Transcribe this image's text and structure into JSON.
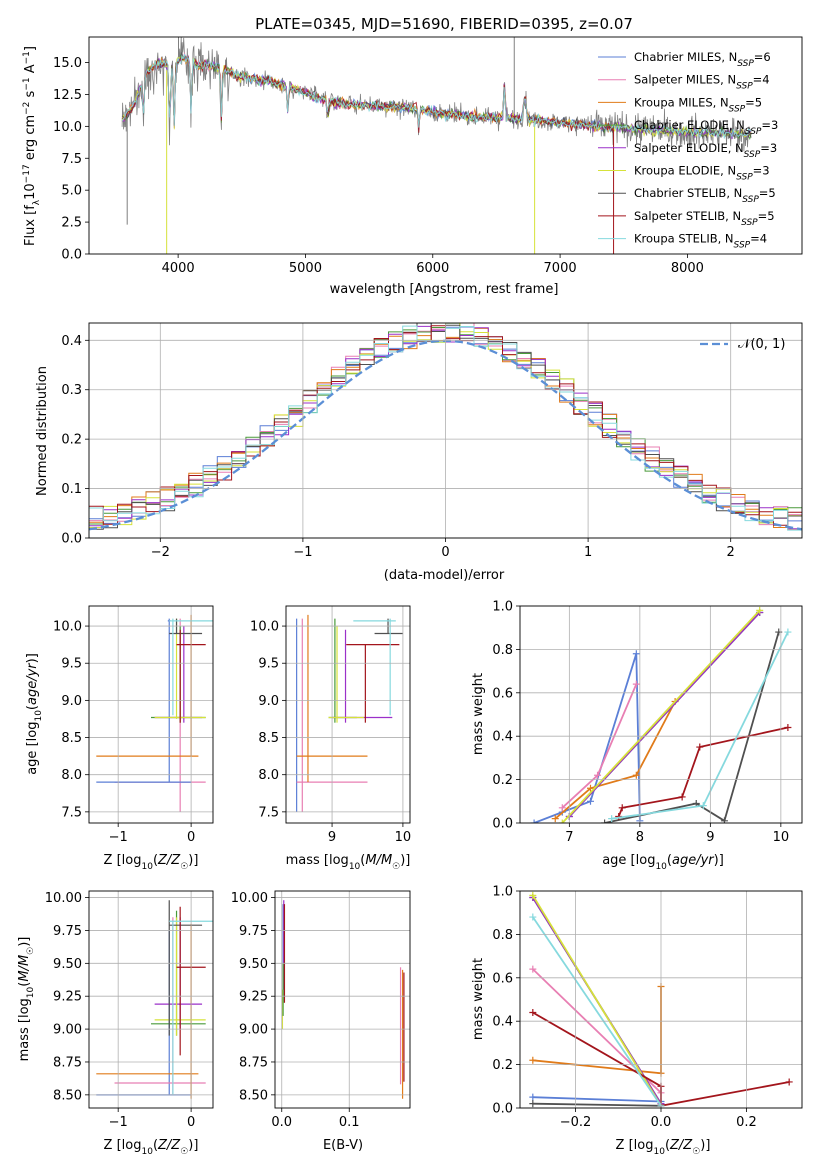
{
  "figure": {
    "title": "PLATE=0345, MJD=51690, FIBERID=0395, z=0.07"
  },
  "colors": {
    "Chabrier MILES": "#5b7fd6",
    "Salpeter MILES": "#e87fb3",
    "Kroupa MILES": "#e07b1a",
    "Chabrier ELODIE": "#4a9a3a",
    "Salpeter ELODIE": "#9b30c9",
    "Kroupa ELODIE": "#d6e23a",
    "Chabrier STELIB": "#505050",
    "Salpeter STELIB": "#a3151c",
    "Kroupa STELIB": "#86d9de",
    "data": "#808080",
    "normal": "#5b8fd6"
  },
  "chart_data": [
    {
      "panel": "spectrum",
      "type": "line",
      "title": "PLATE=0345, MJD=51690, FIBERID=0395, z=0.07",
      "xlabel": "wavelength [Angstrom, rest frame]",
      "ylabel": "Flux [f_λ 10^-17 erg cm^-2 s^-1 A^-1]",
      "xlim": [
        3300,
        8900
      ],
      "ylim": [
        0,
        17
      ],
      "xticks": [
        4000,
        5000,
        6000,
        7000,
        8000
      ],
      "yticks": [
        0.0,
        2.5,
        5.0,
        7.5,
        10.0,
        12.5,
        15.0
      ],
      "legend_position": "right",
      "series": [
        {
          "name": "Chabrier MILES",
          "nssp": "6"
        },
        {
          "name": "Salpeter MILES",
          "nssp": "4"
        },
        {
          "name": "Kroupa MILES",
          "nssp": "5"
        },
        {
          "name": "Chabrier ELODIE",
          "nssp": "3"
        },
        {
          "name": "Salpeter ELODIE",
          "nssp": "3"
        },
        {
          "name": "Kroupa ELODIE",
          "nssp": "3"
        },
        {
          "name": "Chabrier STELIB",
          "nssp": "5"
        },
        {
          "name": "Salpeter STELIB",
          "nssp": "5"
        },
        {
          "name": "Kroupa STELIB",
          "nssp": "4"
        }
      ],
      "continuum_x": [
        3560,
        3650,
        3750,
        3850,
        3950,
        4050,
        4150,
        4300,
        4500,
        4700,
        4900,
        5100,
        5300,
        5500,
        5800,
        6100,
        6400,
        6700,
        7000,
        7300,
        7600,
        7900,
        8200,
        8500
      ],
      "continuum_y": [
        10.5,
        11.6,
        14.2,
        15.0,
        14.8,
        15.4,
        14.8,
        14.7,
        13.9,
        13.6,
        13.0,
        12.2,
        11.8,
        11.6,
        11.5,
        11.0,
        10.7,
        10.6,
        10.3,
        10.0,
        9.8,
        9.6,
        9.5,
        9.4
      ]
    },
    {
      "panel": "residuals",
      "type": "histogram",
      "xlabel": "(data-model)/error",
      "ylabel": "Normed distribution",
      "xlim": [
        -2.5,
        2.5
      ],
      "ylim": [
        0,
        0.435
      ],
      "xticks": [
        -2,
        -1,
        0,
        1,
        2
      ],
      "yticks": [
        0.0,
        0.1,
        0.2,
        0.3,
        0.4
      ],
      "legend": "𝒩(0, 1)",
      "legend_position": "top-right",
      "bins": 50
    },
    {
      "panel": "age-vs-Z",
      "type": "scatter",
      "xlabel": "Z [log10(Z/Z☉)]",
      "ylabel": "age [log10(age/yr)]",
      "xlim": [
        -1.4,
        0.3
      ],
      "ylim": [
        7.35,
        10.27
      ],
      "xticks": [
        -1,
        0
      ],
      "yticks": [
        7.5,
        8.0,
        8.5,
        9.0,
        9.5,
        10.0
      ]
    },
    {
      "panel": "age-vs-mass",
      "type": "scatter",
      "xlabel": "mass [log10(M/M☉)]",
      "ylabel": "",
      "xlim": [
        8.35,
        10.1
      ],
      "ylim": [
        7.35,
        10.27
      ],
      "xticks": [
        9,
        10
      ],
      "yticks": [
        7.5,
        8.0,
        8.5,
        9.0,
        9.5,
        10.0
      ]
    },
    {
      "panel": "weight-vs-age",
      "type": "line",
      "xlabel": "age [log10(age/yr)]",
      "ylabel": "mass weight",
      "xlim": [
        6.3,
        10.3
      ],
      "ylim": [
        0,
        1.0
      ],
      "xticks": [
        7,
        8,
        9,
        10
      ],
      "yticks": [
        0.0,
        0.2,
        0.4,
        0.6,
        0.8,
        1.0
      ],
      "series": [
        {
          "name": "Chabrier MILES",
          "x": [
            6.5,
            6.9,
            7.3,
            7.95,
            8.0
          ],
          "y": [
            0.0,
            0.05,
            0.1,
            0.78,
            0.01
          ]
        },
        {
          "name": "Salpeter MILES",
          "x": [
            6.9,
            7.4,
            7.95
          ],
          "y": [
            0.07,
            0.22,
            0.64
          ]
        },
        {
          "name": "Kroupa MILES",
          "x": [
            6.8,
            7.3,
            7.95,
            8.5
          ],
          "y": [
            0.02,
            0.16,
            0.22,
            0.56
          ]
        },
        {
          "name": "Chabrier ELODIE",
          "x": [
            7.0,
            9.7
          ],
          "y": [
            0.03,
            0.97
          ]
        },
        {
          "name": "Salpeter ELODIE",
          "x": [
            7.0,
            9.7
          ],
          "y": [
            0.03,
            0.97
          ]
        },
        {
          "name": "Kroupa ELODIE",
          "x": [
            6.9,
            9.7
          ],
          "y": [
            0.0,
            0.98
          ]
        },
        {
          "name": "Chabrier STELIB",
          "x": [
            7.5,
            8.8,
            9.2,
            9.97
          ],
          "y": [
            0.0,
            0.09,
            0.01,
            0.88
          ]
        },
        {
          "name": "Salpeter STELIB",
          "x": [
            7.7,
            7.75,
            8.6,
            8.85,
            10.1
          ],
          "y": [
            0.03,
            0.07,
            0.12,
            0.35,
            0.44
          ]
        },
        {
          "name": "Kroupa STELIB",
          "x": [
            7.6,
            8.9,
            10.1
          ],
          "y": [
            0.02,
            0.08,
            0.88
          ]
        }
      ]
    },
    {
      "panel": "mass-vs-Z",
      "type": "scatter",
      "xlabel": "Z [log10(Z/Z☉)]",
      "ylabel": "mass [log10(M/M☉)]",
      "xlim": [
        -1.4,
        0.3
      ],
      "ylim": [
        8.4,
        10.05
      ],
      "xticks": [
        -1,
        0
      ],
      "yticks": [
        8.5,
        8.75,
        9.0,
        9.25,
        9.5,
        9.75,
        10.0
      ]
    },
    {
      "panel": "mass-vs-EBV",
      "type": "scatter",
      "xlabel": "E(B-V)",
      "ylabel": "",
      "xlim": [
        -0.01,
        0.19
      ],
      "ylim": [
        8.4,
        10.05
      ],
      "xticks": [
        0.0,
        0.1
      ],
      "yticks": [
        8.5,
        8.75,
        9.0,
        9.25,
        9.5,
        9.75,
        10.0
      ]
    },
    {
      "panel": "weight-vs-Z",
      "type": "line",
      "xlabel": "Z [log10(Z/Z☉)]",
      "ylabel": "mass weight",
      "xlim": [
        -0.33,
        0.33
      ],
      "ylim": [
        0,
        1.0
      ],
      "xticks": [
        -0.2,
        0.0,
        0.2
      ],
      "yticks": [
        0.0,
        0.2,
        0.4,
        0.6,
        0.8,
        1.0
      ],
      "series": [
        {
          "name": "Chabrier MILES",
          "x": [
            -0.3,
            0.0
          ],
          "y": [
            0.05,
            0.03
          ]
        },
        {
          "name": "Salpeter MILES",
          "x": [
            -0.3,
            0.0
          ],
          "y": [
            0.64,
            0.07
          ]
        },
        {
          "name": "Kroupa MILES",
          "x": [
            -0.3,
            0.0,
            0.0
          ],
          "y": [
            0.22,
            0.16,
            0.56
          ]
        },
        {
          "name": "Chabrier ELODIE",
          "x": [
            -0.3,
            0.0
          ],
          "y": [
            0.97,
            0.02
          ]
        },
        {
          "name": "Salpeter ELODIE",
          "x": [
            -0.3,
            0.0
          ],
          "y": [
            0.97,
            0.02
          ]
        },
        {
          "name": "Kroupa ELODIE",
          "x": [
            -0.3,
            0.0
          ],
          "y": [
            0.98,
            0.01
          ]
        },
        {
          "name": "Chabrier STELIB",
          "x": [
            -0.3,
            0.0
          ],
          "y": [
            0.02,
            0.01
          ]
        },
        {
          "name": "Salpeter STELIB",
          "x": [
            -0.3,
            0.0,
            0.0,
            0.3
          ],
          "y": [
            0.44,
            0.1,
            0.01,
            0.12
          ]
        },
        {
          "name": "Kroupa STELIB",
          "x": [
            -0.3,
            0.0
          ],
          "y": [
            0.88,
            0.01
          ]
        }
      ]
    }
  ],
  "ssp_points": [
    {
      "name": "Chabrier MILES",
      "Z": [
        -1.3,
        0.0
      ],
      "age": [
        7.9,
        10.1
      ],
      "mass": [
        8.5,
        8.5
      ],
      "ebv": 0.003
    },
    {
      "name": "Salpeter MILES",
      "Z": [
        -1.05,
        0.2
      ],
      "age": [
        7.9,
        7.5
      ],
      "mass": [
        8.6,
        8.58
      ],
      "ebv": 0.18
    },
    {
      "name": "Kroupa MILES",
      "Z": [
        -1.3,
        0.1
      ],
      "age": [
        8.25,
        10.15
      ],
      "mass": [
        8.66,
        8.47
      ],
      "ebv": 0.18
    },
    {
      "name": "Chabrier ELODIE",
      "Z": [
        -0.55,
        0.2
      ],
      "age": [
        8.77,
        8.77
      ],
      "mass": [
        9.04,
        9.04
      ],
      "ebv": 0.003
    },
    {
      "name": "Salpeter ELODIE",
      "Z": [
        -0.5,
        0.0
      ],
      "age": [
        8.77,
        8.77
      ],
      "mass": [
        9.19,
        9.19
      ],
      "ebv": 0.003
    },
    {
      "name": "Kroupa ELODIE",
      "Z": [
        -0.5,
        0.2
      ],
      "age": [
        8.77,
        8.77
      ],
      "mass": [
        9.07,
        9.07
      ],
      "ebv": 0.003
    },
    {
      "name": "Chabrier STELIB",
      "Z": [
        -0.3,
        0.15
      ],
      "age": [
        9.9,
        9.9
      ],
      "mass": [
        9.79,
        9.79
      ],
      "ebv": 0.003
    },
    {
      "name": "Salpeter STELIB",
      "Z": [
        -0.2,
        0.2
      ],
      "age": [
        9.75,
        8.7
      ],
      "mass": [
        9.47,
        9.47
      ],
      "ebv": 0.003
    },
    {
      "name": "Kroupa STELIB",
      "Z": [
        -0.3,
        0.3
      ],
      "age": [
        10.07,
        10.07
      ],
      "mass": [
        9.82,
        9.82
      ],
      "ebv": 0.003
    }
  ]
}
